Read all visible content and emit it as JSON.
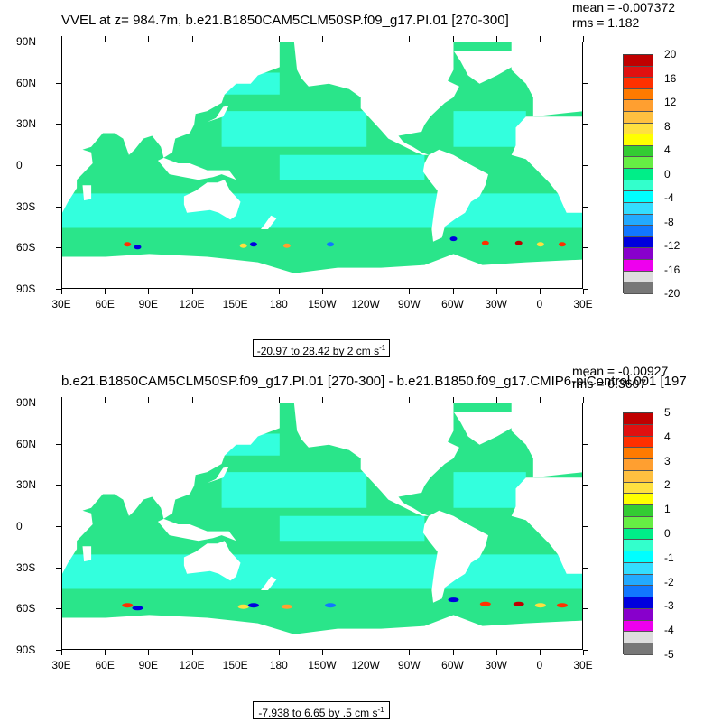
{
  "panels": [
    {
      "title": "VVEL at z= 984.7m, b.e21.B1850CAM5CLM50SP.f09_g17.PI.01 [270-300]",
      "mean_text": "mean = -0.007372",
      "rms_text": "rms = 1.182",
      "range_text": "-20.97 to 28.42 by 2 cm s",
      "range_superscript": "-1",
      "colorbar_labels": [
        "20",
        "16",
        "12",
        "8",
        "4",
        "0",
        "-4",
        "-8",
        "-12",
        "-16",
        "-20"
      ],
      "colorbar_colors": [
        "#c00000",
        "#e01010",
        "#ff3000",
        "#ff7a00",
        "#ff9f30",
        "#ffc040",
        "#ffe040",
        "#ffff00",
        "#33cc33",
        "#66ee44",
        "#00ee88",
        "#33ffcc",
        "#00ffff",
        "#33ddff",
        "#22aaff",
        "#1177ff",
        "#0000dd",
        "#8800cc",
        "#ee00ee",
        "#dddddd",
        "#777777"
      ],
      "map_colors": {
        "ocean": "#2ae58a",
        "band": "#33ffdd",
        "land": "#ffffff"
      }
    },
    {
      "title": "b.e21.B1850CAM5CLM50SP.f09_g17.PI.01 [270-300] - b.e21.B1850.f09_g17.CMIP6-piControl.001 [197",
      "mean_text": "mean = -0.00927",
      "rms_text": "rms = 0.3607",
      "range_text": "-7.938 to 6.65 by .5 cm s",
      "range_superscript": "-1",
      "colorbar_labels": [
        "5",
        "4",
        "3",
        "2",
        "1",
        "0",
        "-1",
        "-2",
        "-3",
        "-4",
        "-5"
      ],
      "colorbar_colors": [
        "#c00000",
        "#e01010",
        "#ff3000",
        "#ff7a00",
        "#ff9f30",
        "#ffc040",
        "#ffe040",
        "#ffff00",
        "#33cc33",
        "#66ee44",
        "#00ee88",
        "#33ffcc",
        "#00ffff",
        "#33ddff",
        "#22aaff",
        "#1177ff",
        "#0000dd",
        "#8800cc",
        "#ee00ee",
        "#dddddd",
        "#777777"
      ],
      "map_colors": {
        "ocean": "#2ae58a",
        "band": "#33ffdd",
        "land": "#ffffff"
      }
    }
  ],
  "axes": {
    "lat_labels": [
      "90N",
      "60N",
      "30N",
      "0",
      "30S",
      "60S",
      "90S"
    ],
    "lon_labels": [
      "30E",
      "60E",
      "90E",
      "120E",
      "150E",
      "180",
      "150W",
      "120W",
      "90W",
      "60W",
      "30W",
      "0",
      "30E"
    ]
  }
}
